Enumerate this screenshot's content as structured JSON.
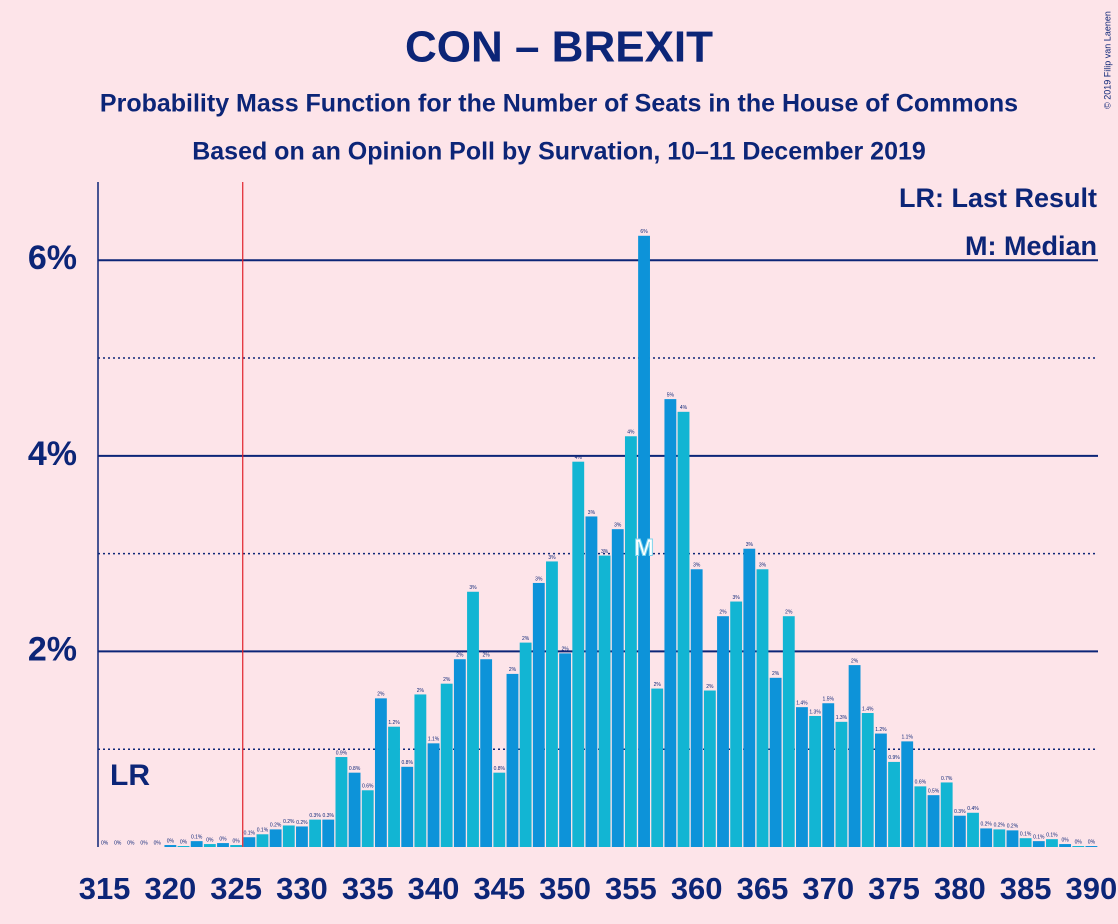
{
  "chart_data": {
    "type": "bar",
    "title": "CON – BREXIT",
    "subtitle": "Probability Mass Function for the Number of Seats in the House of Commons",
    "subtitle2": "Based on an Opinion Poll by Survation, 10–11 December 2019",
    "copyright": "© 2019 Filip van Laenen",
    "legend": [
      "LR: Last Result",
      "M: Median"
    ],
    "last_result": 325,
    "last_result_label": "LR",
    "median": 356,
    "median_label": "M",
    "colors": [
      "#0d93d9",
      "#12b5d3"
    ],
    "x": [
      315,
      316,
      317,
      318,
      319,
      320,
      321,
      322,
      323,
      324,
      325,
      326,
      327,
      328,
      329,
      330,
      331,
      332,
      333,
      334,
      335,
      336,
      337,
      338,
      339,
      340,
      341,
      342,
      343,
      344,
      345,
      346,
      347,
      348,
      349,
      350,
      351,
      352,
      353,
      354,
      355,
      356,
      357,
      358,
      359,
      360,
      361,
      362,
      363,
      364,
      365,
      366,
      367,
      368,
      369,
      370,
      371,
      372,
      373,
      374,
      375,
      376,
      377,
      378,
      379,
      380,
      381,
      382,
      383,
      384,
      385,
      386,
      387,
      388,
      389,
      390
    ],
    "values": [
      0,
      0,
      0,
      0,
      0,
      0.02,
      0.01,
      0.06,
      0.03,
      0.04,
      0.02,
      0.1,
      0.13,
      0.18,
      0.22,
      0.21,
      0.28,
      0.28,
      0.92,
      0.76,
      0.58,
      1.52,
      1.23,
      0.82,
      1.56,
      1.06,
      1.67,
      1.92,
      2.61,
      1.92,
      0.76,
      1.77,
      2.09,
      2.7,
      2.92,
      1.98,
      3.94,
      3.38,
      2.98,
      3.25,
      4.2,
      6.25,
      1.62,
      4.58,
      4.45,
      2.84,
      1.6,
      2.36,
      2.51,
      3.05,
      2.84,
      1.73,
      2.36,
      1.43,
      1.34,
      1.47,
      1.28,
      1.86,
      1.37,
      1.16,
      0.87,
      1.08,
      0.62,
      0.53,
      0.66,
      0.32,
      0.35,
      0.19,
      0.18,
      0.17,
      0.09,
      0.06,
      0.08,
      0.03,
      0.01,
      0.01
    ],
    "value_labels": [
      "0%",
      "0%",
      "0%",
      "0%",
      "0%",
      "0%",
      "0%",
      "0.1%",
      "0%",
      "0%",
      "0%",
      "0.1%",
      "0.1%",
      "0.2%",
      "0.2%",
      "0.2%",
      "0.3%",
      "0.3%",
      "0.9%",
      "0.8%",
      "0.6%",
      "2%",
      "1.2%",
      "0.8%",
      "2%",
      "1.1%",
      "2%",
      "2%",
      "3%",
      "2%",
      "0.8%",
      "2%",
      "2%",
      "3%",
      "3%",
      "2%",
      "4%",
      "3%",
      "3%",
      "3%",
      "4%",
      "6%",
      "2%",
      "5%",
      "4%",
      "3%",
      "2%",
      "2%",
      "3%",
      "3%",
      "3%",
      "2%",
      "2%",
      "1.4%",
      "1.3%",
      "1.5%",
      "1.3%",
      "2%",
      "1.4%",
      "1.2%",
      "0.9%",
      "1.1%",
      "0.6%",
      "0.5%",
      "0.7%",
      "0.3%",
      "0.4%",
      "0.2%",
      "0.2%",
      "0.2%",
      "0.1%",
      "0.1%",
      "0.1%",
      "0%",
      "0%",
      "0%"
    ],
    "xlim": [
      314.5,
      390.5
    ],
    "xticks": [
      315,
      320,
      325,
      330,
      335,
      340,
      345,
      350,
      355,
      360,
      365,
      370,
      375,
      380,
      385,
      390
    ],
    "ylim": [
      0,
      6.8
    ],
    "yticks": [
      {
        "value": 2,
        "label": "2%"
      },
      {
        "value": 4,
        "label": "4%"
      },
      {
        "value": 6,
        "label": "6%"
      }
    ],
    "minor_yticks": [
      1,
      3,
      5
    ],
    "grid": true
  }
}
